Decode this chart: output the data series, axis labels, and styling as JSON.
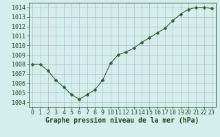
{
  "x": [
    0,
    1,
    2,
    3,
    4,
    5,
    6,
    7,
    8,
    9,
    10,
    11,
    12,
    13,
    14,
    15,
    16,
    17,
    18,
    19,
    20,
    21,
    22,
    23
  ],
  "y": [
    1008.0,
    1008.0,
    1007.3,
    1006.3,
    1005.6,
    1004.8,
    1004.3,
    1004.8,
    1005.3,
    1006.3,
    1008.1,
    1009.0,
    1009.3,
    1009.7,
    1010.3,
    1010.8,
    1011.3,
    1011.8,
    1012.6,
    1013.3,
    1013.8,
    1014.0,
    1014.0,
    1013.9
  ],
  "line_color": "#2d5f2d",
  "marker": "D",
  "marker_size": 2.5,
  "bg_color": "#d4eeed",
  "grid_color": "#b8b8c8",
  "ylabel_ticks": [
    1004,
    1005,
    1006,
    1007,
    1008,
    1009,
    1010,
    1011,
    1012,
    1013,
    1014
  ],
  "xlabel_label": "Graphe pression niveau de la mer (hPa)",
  "ylim": [
    1003.5,
    1014.5
  ],
  "xlim": [
    -0.5,
    23.5
  ],
  "text_color": "#1a4a1a",
  "xlabel_fontsize": 7.0,
  "tick_fontsize": 6.0,
  "line_width": 0.8
}
